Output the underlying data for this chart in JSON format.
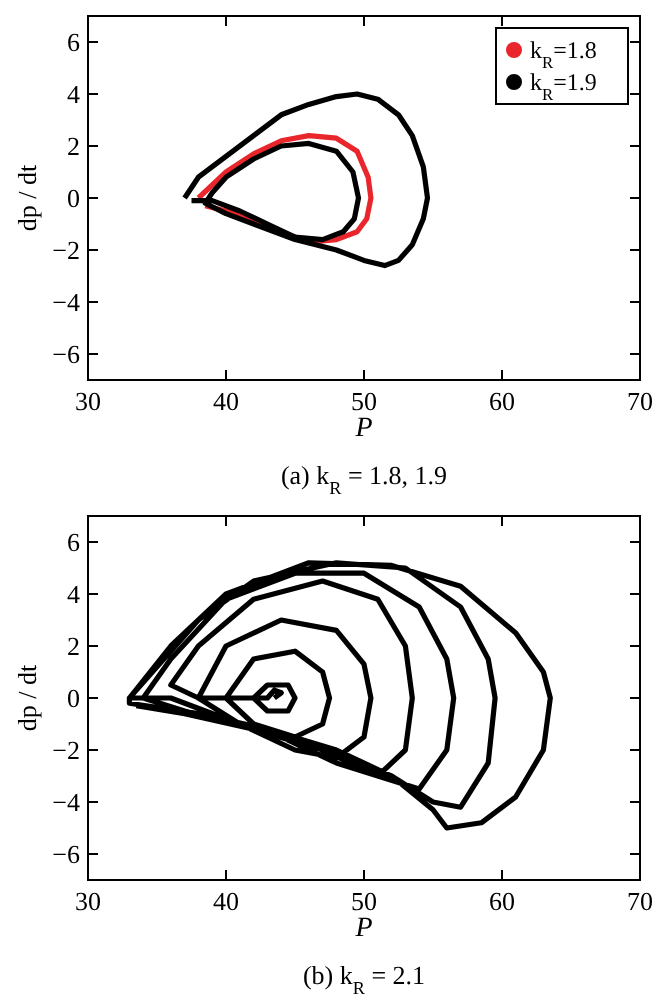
{
  "chart_data": [
    {
      "type": "line",
      "title": "(a) k$_{R}$ = 1.8, 1.9",
      "xlabel": "P",
      "ylabel": "dp / dt",
      "xlim": [
        30,
        70
      ],
      "ylim": [
        -7,
        7
      ],
      "xticks": [
        30,
        40,
        50,
        60,
        70
      ],
      "yticks": [
        -6,
        -4,
        -2,
        0,
        2,
        4,
        6
      ],
      "legend": "top right",
      "series": [
        {
          "name": "k$_{R}$=1.8",
          "color": "#e8262b",
          "x": [
            38,
            40,
            42,
            44,
            46,
            48,
            49.5,
            50.3,
            50.5,
            50.2,
            49.5,
            48,
            46,
            44,
            42,
            40,
            38.5
          ],
          "values": [
            0,
            1,
            1.7,
            2.2,
            2.4,
            2.3,
            1.8,
            0.8,
            0,
            -0.8,
            -1.3,
            -1.6,
            -1.7,
            -1.3,
            -0.9,
            -0.5,
            -0.3
          ]
        },
        {
          "name": "k$_{R}$=1.9",
          "color": "#000000",
          "x": [
            37,
            38,
            40,
            42,
            44,
            46,
            48,
            49.5,
            51,
            52.5,
            53.5,
            54.3,
            54.6,
            54.3,
            53.5,
            52.5,
            51.5,
            50,
            48,
            45,
            42,
            40,
            38.5,
            39,
            40,
            42,
            44,
            46,
            48,
            49.2,
            49.6,
            49.3,
            48.5,
            47,
            45,
            43,
            41,
            39,
            37.5
          ],
          "values": [
            0,
            0.8,
            1.6,
            2.4,
            3.2,
            3.6,
            3.9,
            4,
            3.8,
            3.2,
            2.4,
            1.2,
            0,
            -0.8,
            -1.8,
            -2.4,
            -2.6,
            -2.4,
            -2,
            -1.6,
            -1,
            -0.6,
            -0.2,
            0.2,
            0.8,
            1.5,
            2,
            2.1,
            1.8,
            1,
            0,
            -0.8,
            -1.3,
            -1.6,
            -1.5,
            -1,
            -0.5,
            -0.1,
            -0.1
          ]
        }
      ]
    },
    {
      "type": "line",
      "title": "(b) k$_{R}$ = 2.1",
      "xlabel": "P",
      "ylabel": "dp / dt",
      "xlim": [
        30,
        70
      ],
      "ylim": [
        -7,
        7
      ],
      "xticks": [
        30,
        40,
        50,
        60,
        70
      ],
      "yticks": [
        -6,
        -4,
        -2,
        0,
        2,
        4,
        6
      ],
      "series": [
        {
          "color": "#000000",
          "x": [
            43.5,
            44,
            43.5,
            43,
            42,
            43,
            44.5,
            45,
            44.5,
            43,
            42,
            40,
            42,
            45,
            47,
            47.5,
            47,
            45,
            42,
            40,
            38,
            40,
            44,
            48,
            50,
            50.5,
            50,
            48,
            45,
            41,
            38,
            36,
            38,
            42,
            47,
            51,
            53,
            53.5,
            53,
            51,
            48,
            44,
            40,
            36,
            34,
            36,
            40,
            45,
            50,
            54,
            56,
            56.5,
            56,
            54,
            51,
            47,
            42,
            37,
            34,
            33,
            35,
            38,
            42,
            48,
            53,
            57,
            59,
            59.5,
            59,
            57,
            55,
            52,
            48,
            43,
            38,
            33,
            33,
            36,
            40,
            46,
            52,
            57,
            61,
            63,
            63.5,
            63,
            61,
            58.5,
            56,
            55,
            52,
            47,
            42,
            37,
            33.5
          ],
          "values": [
            0,
            0.2,
            0.3,
            0,
            0,
            0.5,
            0.5,
            0,
            -0.5,
            -0.5,
            0,
            0,
            1.5,
            1.8,
            1,
            0,
            -1,
            -1.5,
            -1,
            0,
            0,
            2,
            3,
            2.6,
            1.3,
            0,
            -1.5,
            -2.3,
            -2,
            -1,
            0,
            0.5,
            2,
            3.8,
            4.5,
            3.8,
            2,
            0,
            -2,
            -3,
            -2.5,
            -1.5,
            -0.8,
            0,
            0,
            1.5,
            3.8,
            4.8,
            4.8,
            3.5,
            1.5,
            0,
            -2,
            -3.5,
            -3,
            -2,
            -1.2,
            -0.5,
            0,
            0,
            1.2,
            3,
            4.5,
            5.2,
            5,
            3.5,
            1.5,
            0,
            -2.5,
            -4.2,
            -4,
            -3,
            -2,
            -1.2,
            -0.6,
            -0.2,
            0,
            2,
            4,
            5.2,
            5.1,
            4.3,
            2.5,
            1,
            0,
            -2,
            -3.8,
            -4.8,
            -5,
            -4.3,
            -3,
            -1.9,
            -1.2,
            -0.6,
            -0.3
          ]
        }
      ]
    }
  ]
}
